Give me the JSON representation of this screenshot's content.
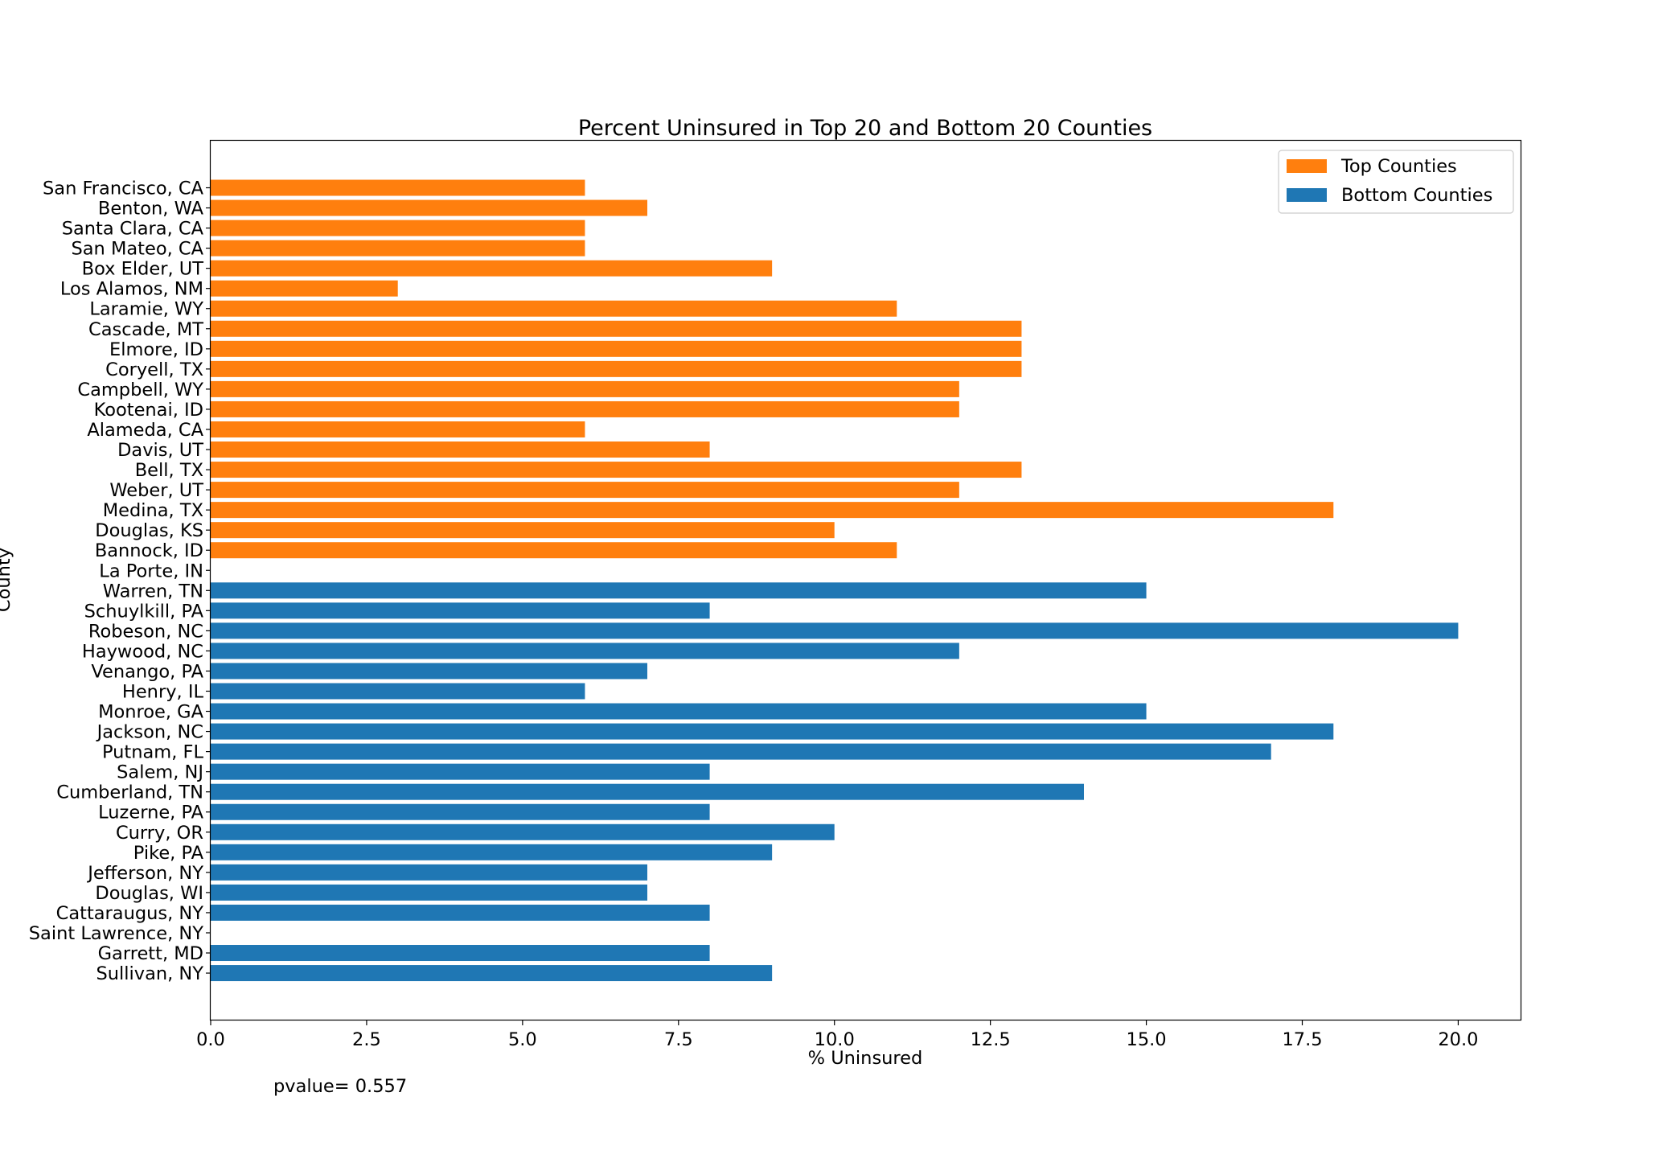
{
  "chart_data": {
    "type": "bar",
    "orientation": "horizontal",
    "title": "Percent Uninsured in Top 20 and Bottom 20 Counties",
    "xlabel": "% Uninsured",
    "ylabel": "County",
    "xlim": [
      0,
      21
    ],
    "xticks": [
      "0.0",
      "2.5",
      "5.0",
      "7.5",
      "10.0",
      "12.5",
      "15.0",
      "17.5",
      "20.0"
    ],
    "grid": false,
    "legend_position": "top-right",
    "annotation": "pvalue= 0.557",
    "series": [
      {
        "name": "Top Counties",
        "color": "#ff7f0e",
        "categories": [
          "San Francisco, CA",
          "Benton, WA",
          "Santa Clara, CA",
          "San Mateo, CA",
          "Box Elder, UT",
          "Los Alamos, NM",
          "Laramie, WY",
          "Cascade, MT",
          "Elmore, ID",
          "Coryell, TX",
          "Campbell, WY",
          "Kootenai, ID",
          "Alameda, CA",
          "Davis, UT",
          "Bell, TX",
          "Weber, UT",
          "Medina, TX",
          "Douglas, KS",
          "Bannock, ID",
          "La Porte, IN"
        ],
        "values": [
          6,
          7,
          6,
          6,
          9,
          3,
          11,
          13,
          13,
          13,
          12,
          12,
          6,
          8,
          13,
          12,
          18,
          10,
          11,
          0
        ]
      },
      {
        "name": "Bottom Counties",
        "color": "#1f77b4",
        "categories": [
          "Warren, TN",
          "Schuylkill, PA",
          "Robeson, NC",
          "Haywood, NC",
          "Venango, PA",
          "Henry, IL",
          "Monroe, GA",
          "Jackson, NC",
          "Putnam, FL",
          "Salem, NJ",
          "Cumberland, TN",
          "Luzerne, PA",
          "Curry, OR",
          "Pike, PA",
          "Jefferson, NY",
          "Douglas, WI",
          "Cattaraugus, NY",
          "Saint Lawrence, NY",
          "Garrett, MD",
          "Sullivan, NY"
        ],
        "values": [
          15,
          8,
          20,
          12,
          7,
          6,
          15,
          18,
          17,
          8,
          14,
          8,
          10,
          9,
          7,
          7,
          8,
          0,
          8,
          9
        ]
      }
    ]
  }
}
